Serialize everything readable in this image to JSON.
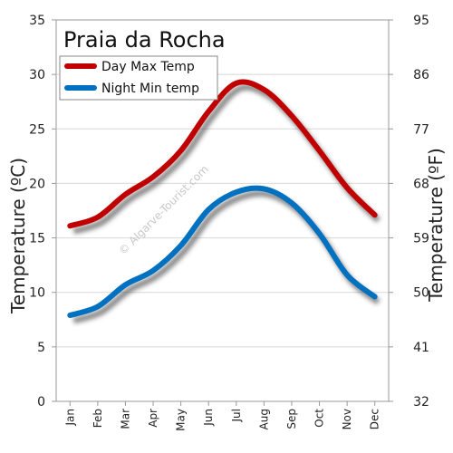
{
  "chart_data": {
    "type": "line",
    "title": "Praia da Rocha",
    "ylabel_left": "Temperature (ºC)",
    "ylabel_right": "Temperature (ºF)",
    "categories": [
      "Jan",
      "Feb",
      "Mar",
      "Apr",
      "May",
      "Jun",
      "Jul",
      "Aug",
      "Sep",
      "Oct",
      "Nov",
      "Dec"
    ],
    "ylim": [
      0,
      35
    ],
    "yticks_left": [
      "0",
      "5",
      "10",
      "15",
      "20",
      "25",
      "30",
      "35"
    ],
    "yticks_right": [
      "32",
      "41",
      "50",
      "59",
      "68",
      "77",
      "86",
      "95"
    ],
    "series": [
      {
        "name": "Day Max Temp",
        "color": "#c00000",
        "values": [
          16.1,
          16.9,
          19.0,
          20.6,
          23.0,
          26.6,
          29.2,
          28.6,
          26.2,
          23.0,
          19.6,
          17.1
        ]
      },
      {
        "name": "Night Min temp",
        "color": "#0070c0",
        "values": [
          7.9,
          8.7,
          10.7,
          12.0,
          14.3,
          17.6,
          19.2,
          19.5,
          18.2,
          15.4,
          11.6,
          9.6
        ]
      }
    ],
    "grid": true,
    "legend_position": "top-left"
  },
  "watermark": "© Algarve-Tourist.com"
}
